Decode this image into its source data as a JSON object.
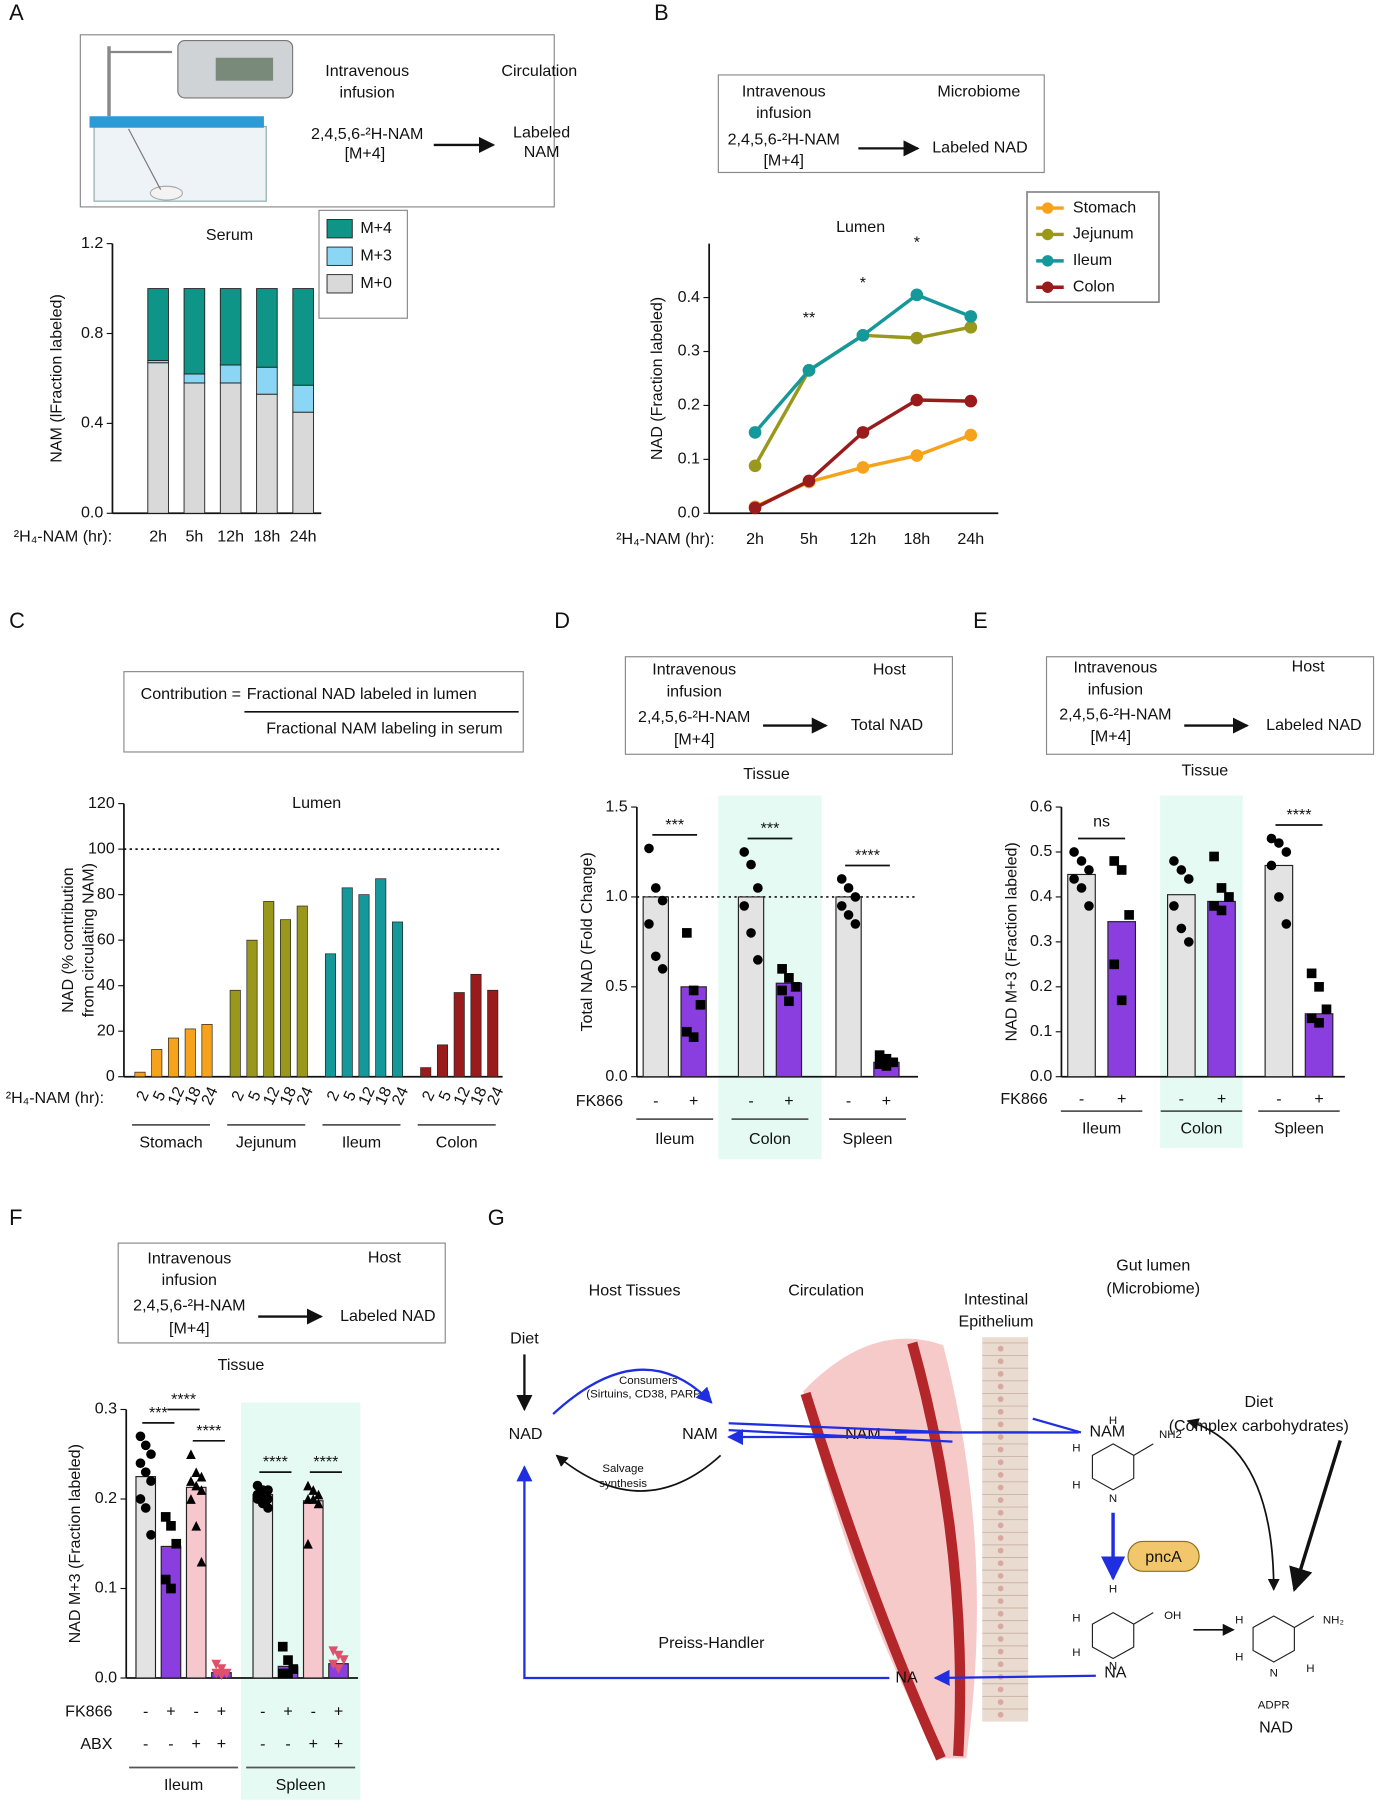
{
  "panel_labels": [
    "A",
    "B",
    "C",
    "D",
    "E",
    "F",
    "G"
  ],
  "schemes": [
    {
      "infusion": [
        "Intravenous",
        "infusion"
      ],
      "target": "Circulation",
      "tracer": "2,4,5,6-²H-NAM",
      "mass": "[M+4]",
      "product": [
        "Labeled",
        "NAM"
      ]
    },
    {
      "infusion": [
        "Intravenous",
        "infusion"
      ],
      "target": "Microbiome",
      "tracer": "2,4,5,6-²H-NAM",
      "mass": "[M+4]",
      "product": [
        "Labeled NAD"
      ]
    },
    {
      "infusion": [
        "Intravenous",
        "infusion"
      ],
      "target": "Host",
      "tracer": "2,4,5,6-²H-NAM",
      "mass": "[M+4]",
      "product": [
        "Total NAD"
      ]
    },
    {
      "infusion": [
        "Intravenous",
        "infusion"
      ],
      "target": "Host",
      "tracer": "2,4,5,6-²H-NAM",
      "mass": "[M+4]",
      "product": [
        "Labeled NAD"
      ]
    },
    {
      "infusion": [
        "Intravenous",
        "infusion"
      ],
      "target": "Host",
      "tracer": "2,4,5,6-²H-NAM",
      "mass": "[M+4]",
      "product": [
        "Labeled NAD"
      ]
    }
  ],
  "formula": {
    "lhs": "Contribution =",
    "numerator": "Fractional NAD labeled in lumen",
    "denominator": "Fractional NAM labeling in serum"
  },
  "chart_data": [
    {
      "type": "stacked_bar",
      "title": "Serum",
      "ylabel": "NAM (lFraction labeled)",
      "xlabel": "²H₄-NAM (hr):",
      "categories": [
        "2h",
        "5h",
        "12h",
        "18h",
        "24h"
      ],
      "series": [
        {
          "name": "M+0",
          "color": "#d9d9d9",
          "values": [
            0.67,
            0.58,
            0.58,
            0.53,
            0.45
          ]
        },
        {
          "name": "M+3",
          "color": "#8ad6f4",
          "values": [
            0.01,
            0.04,
            0.08,
            0.12,
            0.12
          ]
        },
        {
          "name": "M+4",
          "color": "#0f9488",
          "values": [
            0.32,
            0.38,
            0.34,
            0.35,
            0.43
          ]
        }
      ],
      "ylim": [
        0,
        1.2
      ],
      "yticks": [
        {
          "value": 0,
          "label": "0.0"
        },
        0.4,
        0.8,
        1.2
      ],
      "legend": "right"
    },
    {
      "type": "line",
      "title": "Lumen",
      "ylabel": "NAD (Fraction labeled)",
      "xlabel": "²H₄-NAM (hr):",
      "categories": [
        "2h",
        "5h",
        "12h",
        "18h",
        "24h"
      ],
      "series": [
        {
          "name": "Stomach",
          "color": "#f7a21b",
          "values": [
            0.012,
            0.058,
            0.085,
            0.107,
            0.145
          ]
        },
        {
          "name": "Jejunum",
          "color": "#9a981c",
          "values": [
            0.088,
            0.265,
            0.33,
            0.325,
            0.345
          ]
        },
        {
          "name": "Ileum",
          "color": "#15989a",
          "values": [
            0.15,
            0.265,
            0.33,
            0.405,
            0.365
          ]
        },
        {
          "name": "Colon",
          "color": "#991b1b",
          "values": [
            0.01,
            0.06,
            0.15,
            0.21,
            0.208
          ]
        }
      ],
      "ylim": [
        0,
        0.5
      ],
      "yticks": [
        {
          "value": 0,
          "label": "0.0"
        },
        0.1,
        0.2,
        0.3,
        0.4
      ],
      "legend": "right",
      "annotations": [
        {
          "category": 1,
          "label": "**"
        },
        {
          "category": 2,
          "label": "*"
        },
        {
          "category": 3,
          "label": "*"
        }
      ]
    },
    {
      "type": "grouped_bar",
      "title": "Lumen",
      "ylabel": [
        "NAD (% contribution",
        "from circulating NAM)"
      ],
      "xlabel": "²H₄-NAM (hr):",
      "categories": [
        2,
        5,
        12,
        18,
        24
      ],
      "series": [
        {
          "name": "Stomach",
          "color": "#f7a21b",
          "values": [
            2,
            12,
            17,
            21,
            23
          ]
        },
        {
          "name": "Jejunum",
          "color": "#9a981c",
          "values": [
            38,
            60,
            77,
            69,
            75
          ]
        },
        {
          "name": "Ileum",
          "color": "#15989a",
          "values": [
            54,
            83,
            80,
            87,
            68
          ]
        },
        {
          "name": "Colon",
          "color": "#991b1b",
          "values": [
            4,
            14,
            37,
            45,
            38
          ]
        }
      ],
      "ylim": [
        0,
        120
      ],
      "yticks": [
        0,
        20,
        40,
        60,
        80,
        100,
        120
      ],
      "reference_line": 100
    },
    {
      "type": "bar_dot",
      "title": "Tissue",
      "ylabel": "Total NAD (Fold Change)",
      "groups": [
        "Ileum",
        "Colon",
        "Spleen"
      ],
      "shaded_group": 1,
      "conditions": [
        {
          "name": "FK866",
          "labels": [
            "-",
            "+"
          ]
        }
      ],
      "series": [
        {
          "color": "#e3e3e3",
          "marker": "circle",
          "marker_color": "#000000",
          "values": [
            1.0,
            1.0,
            1.0
          ],
          "points": [
            [
              1.27,
              1.05,
              0.98,
              0.85,
              0.67,
              0.6
            ],
            [
              1.25,
              1.18,
              1.05,
              0.95,
              0.8,
              0.65
            ],
            [
              1.1,
              1.05,
              1.0,
              0.95,
              0.9,
              0.85
            ]
          ]
        },
        {
          "color": "#8a3ee0",
          "marker": "square",
          "marker_color": "#000000",
          "values": [
            0.5,
            0.52,
            0.08
          ],
          "points": [
            [
              0.8,
              0.48,
              0.4,
              0.25,
              0.22
            ],
            [
              0.6,
              0.55,
              0.5,
              0.48,
              0.42
            ],
            [
              0.12,
              0.1,
              0.08,
              0.07,
              0.06
            ]
          ]
        }
      ],
      "ylim": [
        0,
        1.5
      ],
      "yticks": [
        {
          "value": 0,
          "label": "0.0"
        },
        0.5,
        {
          "value": 1,
          "label": "1.0"
        },
        1.5
      ],
      "reference_line": 1,
      "significance": [
        {
          "group": 0,
          "from": 0,
          "to": 1,
          "label": "***"
        },
        {
          "group": 1,
          "from": 0,
          "to": 1,
          "label": "***"
        },
        {
          "group": 2,
          "from": 0,
          "to": 1,
          "label": "****"
        }
      ]
    },
    {
      "type": "bar_dot",
      "title": "Tissue",
      "ylabel": "NAD M+3 (Fraction labeled)",
      "groups": [
        "Ileum",
        "Colon",
        "Spleen"
      ],
      "shaded_group": 1,
      "conditions": [
        {
          "name": "FK866",
          "labels": [
            "-",
            "+"
          ]
        }
      ],
      "series": [
        {
          "color": "#e3e3e3",
          "marker": "circle",
          "marker_color": "#000000",
          "values": [
            0.45,
            0.405,
            0.47
          ],
          "points": [
            [
              0.5,
              0.48,
              0.46,
              0.44,
              0.42,
              0.38
            ],
            [
              0.48,
              0.46,
              0.44,
              0.38,
              0.33,
              0.3
            ],
            [
              0.53,
              0.52,
              0.5,
              0.47,
              0.4,
              0.34
            ]
          ]
        },
        {
          "color": "#8a3ee0",
          "marker": "square",
          "marker_color": "#000000",
          "values": [
            0.345,
            0.39,
            0.14
          ],
          "points": [
            [
              0.48,
              0.46,
              0.36,
              0.25,
              0.17
            ],
            [
              0.49,
              0.42,
              0.4,
              0.38,
              0.37
            ],
            [
              0.23,
              0.2,
              0.15,
              0.13,
              0.12
            ]
          ]
        }
      ],
      "ylim": [
        0,
        0.6
      ],
      "yticks": [
        {
          "value": 0,
          "label": "0.0"
        },
        0.1,
        0.2,
        0.3,
        0.4,
        0.5,
        0.6
      ],
      "significance": [
        {
          "group": 0,
          "from": 0,
          "to": 1,
          "label": "ns"
        },
        {
          "group": 2,
          "from": 0,
          "to": 1,
          "label": "****"
        }
      ]
    },
    {
      "type": "bar_dot",
      "title": "Tissue",
      "ylabel": "NAD M+3 (Fraction labeled)",
      "groups": [
        "Ileum",
        "Spleen"
      ],
      "shaded_group": 1,
      "conditions": [
        {
          "name": "FK866",
          "labels": [
            "-",
            "+",
            "-",
            "+"
          ]
        },
        {
          "name": "ABX",
          "labels": [
            "-",
            "-",
            "+",
            "+"
          ]
        }
      ],
      "series": [
        {
          "color": "#e3e3e3",
          "marker": "circle",
          "marker_color": "#000000",
          "values": [
            0.225,
            0.205
          ],
          "points": [
            [
              0.27,
              0.26,
              0.25,
              0.24,
              0.23,
              0.22,
              0.2,
              0.19,
              0.16
            ],
            [
              0.215,
              0.21,
              0.21,
              0.205,
              0.2,
              0.2,
              0.2,
              0.195,
              0.19
            ]
          ]
        },
        {
          "color": "#8a3ee0",
          "marker": "square",
          "marker_color": "#000000",
          "values": [
            0.147,
            0.013
          ],
          "points": [
            [
              0.18,
              0.17,
              0.15,
              0.11,
              0.1
            ],
            [
              0.035,
              0.02,
              0.01,
              0.005,
              0.005
            ]
          ]
        },
        {
          "color": "#f6c8ce",
          "marker": "triangle",
          "marker_color": "#000000",
          "values": [
            0.213,
            0.198
          ],
          "points": [
            [
              0.25,
              0.23,
              0.225,
              0.22,
              0.215,
              0.21,
              0.2,
              0.17,
              0.13
            ],
            [
              0.215,
              0.21,
              0.205,
              0.2,
              0.2,
              0.195,
              0.15
            ]
          ]
        },
        {
          "color": "#8a3ee0",
          "marker": "triangle-down",
          "marker_color": "#e0506a",
          "values": [
            0.006,
            0.016
          ],
          "points": [
            [
              0.015,
              0.01,
              0.005,
              0.005,
              0.003
            ],
            [
              0.03,
              0.025,
              0.02,
              0.015,
              0.01
            ]
          ]
        }
      ],
      "ylim": [
        0,
        0.3
      ],
      "yticks": [
        {
          "value": 0,
          "label": "0.0"
        },
        0.1,
        0.2,
        0.3
      ],
      "significance": [
        {
          "group": 0,
          "from": 0,
          "to": 1,
          "label": "***"
        },
        {
          "group": 0,
          "from": 2,
          "to": 3,
          "label": "****"
        },
        {
          "group": 0,
          "from": 1,
          "to": 2,
          "label": "****"
        },
        {
          "group": 1,
          "from": 0,
          "to": 1,
          "label": "****"
        },
        {
          "group": 1,
          "from": 2,
          "to": 3,
          "label": "****"
        }
      ]
    }
  ],
  "diagram": {
    "host": "Host Tissues",
    "circulation": "Circulation",
    "epithelium": [
      "Intestinal",
      "Epithelium"
    ],
    "lumen": [
      "Gut lumen",
      "(Microbiome)"
    ],
    "diet_host": "Diet",
    "nad_host": "NAD",
    "nam_host": "NAM",
    "consumers": [
      "Consumers",
      "(Sirtuins, CD38, PARPs)"
    ],
    "salvage": [
      "Salvage",
      "synthesis"
    ],
    "nam_circ": "NAM",
    "nam_lumen": "NAM",
    "diet_lumen": [
      "Diet",
      "(Complex carbohydrates)"
    ],
    "enzyme": "pncA",
    "na_circ": "NA",
    "na_lumen": "NA",
    "pathway": "Preiss-Handler",
    "nad_lumen": "NAD",
    "nam_struct": [
      "H",
      "H",
      "H",
      "N",
      "NH2"
    ],
    "na_struct": [
      "H",
      "H",
      "H",
      "N",
      "OH"
    ],
    "nad_struct": [
      "H",
      "H",
      "N",
      "ADPR",
      "NH₂",
      "H"
    ]
  }
}
